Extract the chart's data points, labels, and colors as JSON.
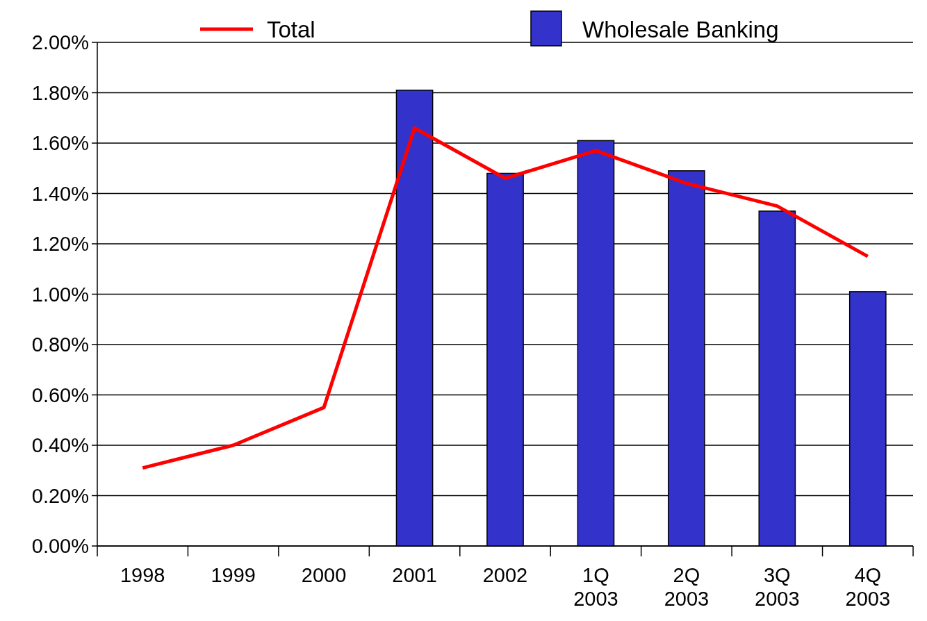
{
  "chart_data": {
    "type": "bar",
    "categories": [
      "1998",
      "1999",
      "2000",
      "2001",
      "2002",
      "1Q 2003",
      "2Q 2003",
      "3Q 2003",
      "4Q 2003"
    ],
    "series": [
      {
        "name": "Total",
        "type": "line",
        "color": "#ff0000",
        "values": [
          0.31,
          0.4,
          0.55,
          1.66,
          1.46,
          1.57,
          1.44,
          1.35,
          1.15
        ]
      },
      {
        "name": "Wholesale Banking",
        "color": "#3333cc",
        "values": [
          null,
          null,
          null,
          1.81,
          1.48,
          1.61,
          1.49,
          1.33,
          1.01
        ]
      }
    ],
    "ylim": [
      0,
      2
    ],
    "yticks": [
      {
        "value": 0,
        "label": "0.00%"
      },
      {
        "value": 0.2,
        "label": "0.20%"
      },
      {
        "value": 0.4,
        "label": "0.40%"
      },
      {
        "value": 0.6,
        "label": "0.60%"
      },
      {
        "value": 0.8,
        "label": "0.80%"
      },
      {
        "value": 1,
        "label": "1.00%"
      },
      {
        "value": 1.2,
        "label": "1.20%"
      },
      {
        "value": 1.4,
        "label": "1.40%"
      },
      {
        "value": 1.6,
        "label": "1.60%"
      },
      {
        "value": 1.8,
        "label": "1.80%"
      },
      {
        "value": 2,
        "label": "2.00%"
      }
    ],
    "grid": "y",
    "legend": "top",
    "marker": "none",
    "line_style": "solid"
  }
}
